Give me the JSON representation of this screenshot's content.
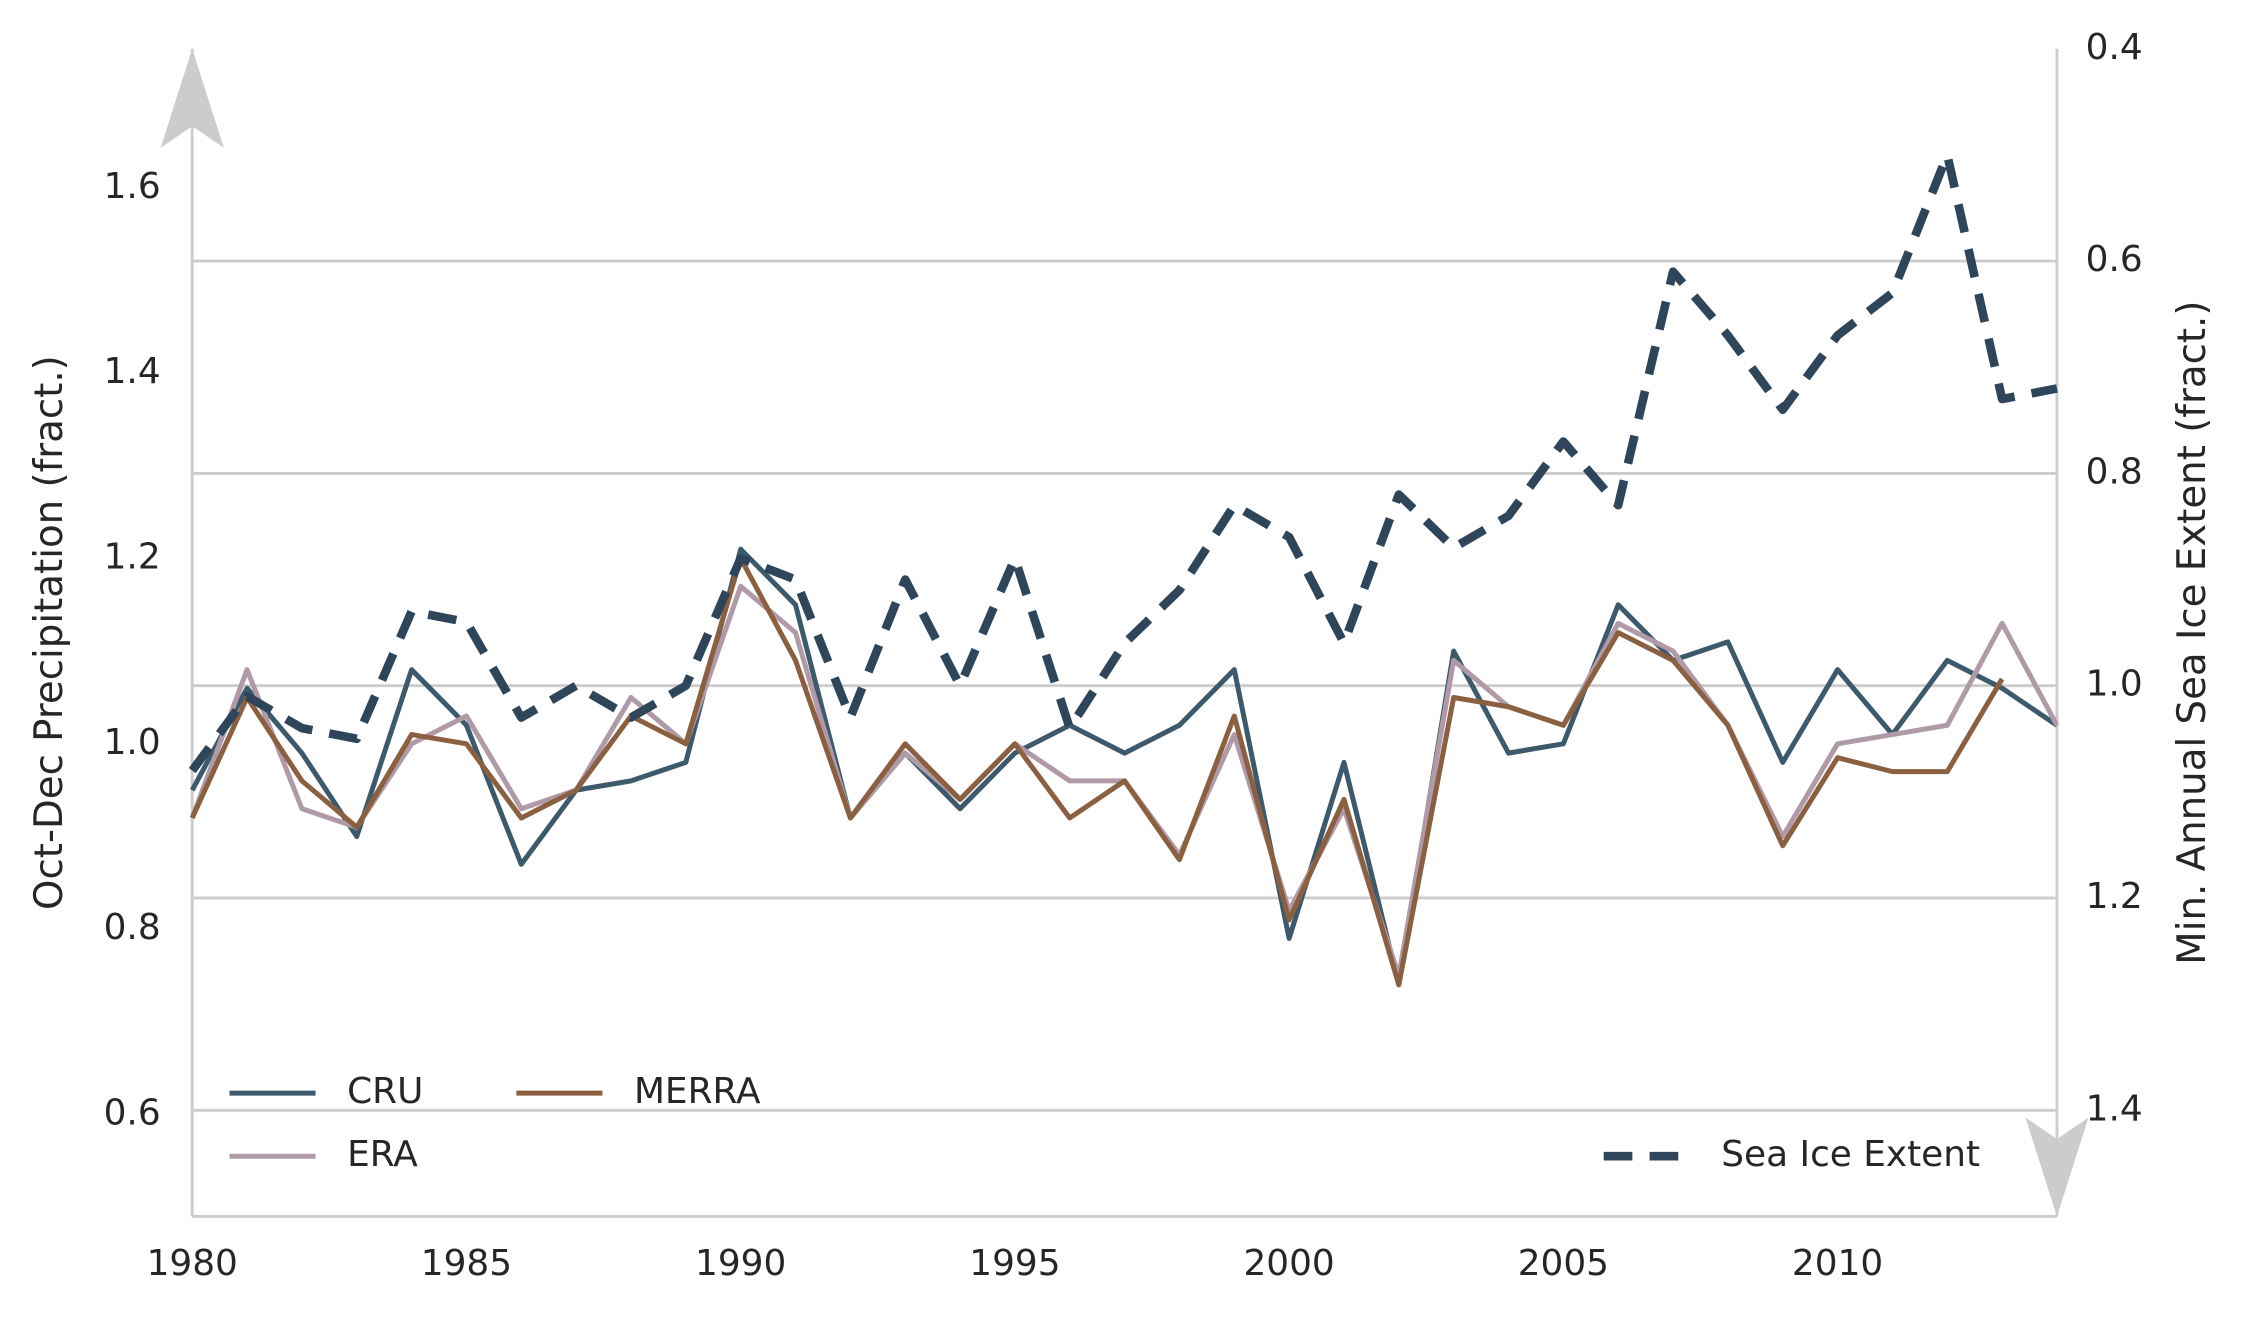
{
  "chart_data": {
    "type": "line",
    "xlabel": null,
    "ylabel": "Oct-Dec Precipitation (fract.)",
    "y2label": "Min. Annual Sea Ice Extent (fract.)",
    "x": [
      1980,
      1981,
      1982,
      1983,
      1984,
      1985,
      1986,
      1987,
      1988,
      1989,
      1990,
      1991,
      1992,
      1993,
      1994,
      1995,
      1996,
      1997,
      1998,
      1999,
      2000,
      2001,
      2002,
      2003,
      2004,
      2005,
      2006,
      2007,
      2008,
      2009,
      2010,
      2011,
      2012,
      2013,
      2014
    ],
    "xlim": [
      1980,
      2014
    ],
    "xticks": [
      1980,
      1985,
      1990,
      1995,
      2000,
      2005,
      2010
    ],
    "ylim": [
      0.49,
      1.75
    ],
    "yticks": [
      0.6,
      0.8,
      {
        "value": 1,
        "label": "1.0"
      },
      1.2,
      1.4,
      1.6
    ],
    "y2lim": [
      0.4,
      1.5
    ],
    "y2_inverted": true,
    "y2ticks": [
      0.4,
      0.6,
      0.8,
      {
        "value": 1,
        "label": "1.0"
      },
      1.2,
      1.4
    ],
    "grid": "y2",
    "legend": {
      "y": "lower left",
      "y2": "lower right"
    },
    "series": [
      {
        "name": "CRU",
        "color": "#3d5a6c",
        "values": [
          0.95,
          1.06,
          0.99,
          0.9,
          1.08,
          1.02,
          0.87,
          0.95,
          0.96,
          0.98,
          1.21,
          1.15,
          0.92,
          0.99,
          0.93,
          0.99,
          1.02,
          0.99,
          1.02,
          1.08,
          0.79,
          0.98,
          0.74,
          1.1,
          0.99,
          1.0,
          1.15,
          1.09,
          1.11,
          0.98,
          1.08,
          1.01,
          1.09,
          1.06,
          1.02
        ]
      },
      {
        "name": "ERA",
        "color": "#b09aa8",
        "values": [
          0.92,
          1.08,
          0.93,
          0.91,
          1.0,
          1.03,
          0.93,
          0.95,
          1.05,
          1.0,
          1.17,
          1.12,
          0.92,
          0.99,
          0.94,
          1.0,
          0.96,
          0.96,
          0.88,
          1.01,
          0.82,
          0.93,
          0.75,
          1.09,
          1.04,
          1.02,
          1.13,
          1.1,
          1.02,
          0.9,
          1.0,
          1.01,
          1.02,
          1.13,
          1.02
        ]
      },
      {
        "name": "MERRA",
        "color": "#8b6040",
        "values": [
          0.92,
          1.05,
          0.96,
          0.91,
          1.01,
          1.0,
          0.92,
          0.95,
          1.03,
          1.0,
          1.2,
          1.09,
          0.92,
          1.0,
          0.94,
          1.0,
          0.92,
          0.96,
          0.875,
          1.03,
          0.81,
          0.94,
          0.74,
          1.05,
          1.04,
          1.02,
          1.12,
          1.09,
          1.02,
          0.89,
          0.985,
          0.97,
          0.97,
          1.07,
          null
        ]
      },
      {
        "name": "Sea Ice Extent",
        "color": "#2f4559",
        "axis": "y2",
        "dashed": true,
        "values": [
          1.08,
          1.01,
          1.04,
          1.05,
          0.93,
          0.94,
          1.03,
          1.0,
          1.03,
          1.0,
          0.88,
          0.9,
          1.03,
          0.9,
          1.0,
          0.88,
          1.04,
          0.96,
          0.91,
          0.83,
          0.86,
          0.96,
          0.82,
          0.87,
          0.84,
          0.77,
          0.83,
          0.61,
          0.67,
          0.74,
          0.67,
          0.63,
          0.5,
          0.73,
          0.72
        ]
      }
    ]
  }
}
